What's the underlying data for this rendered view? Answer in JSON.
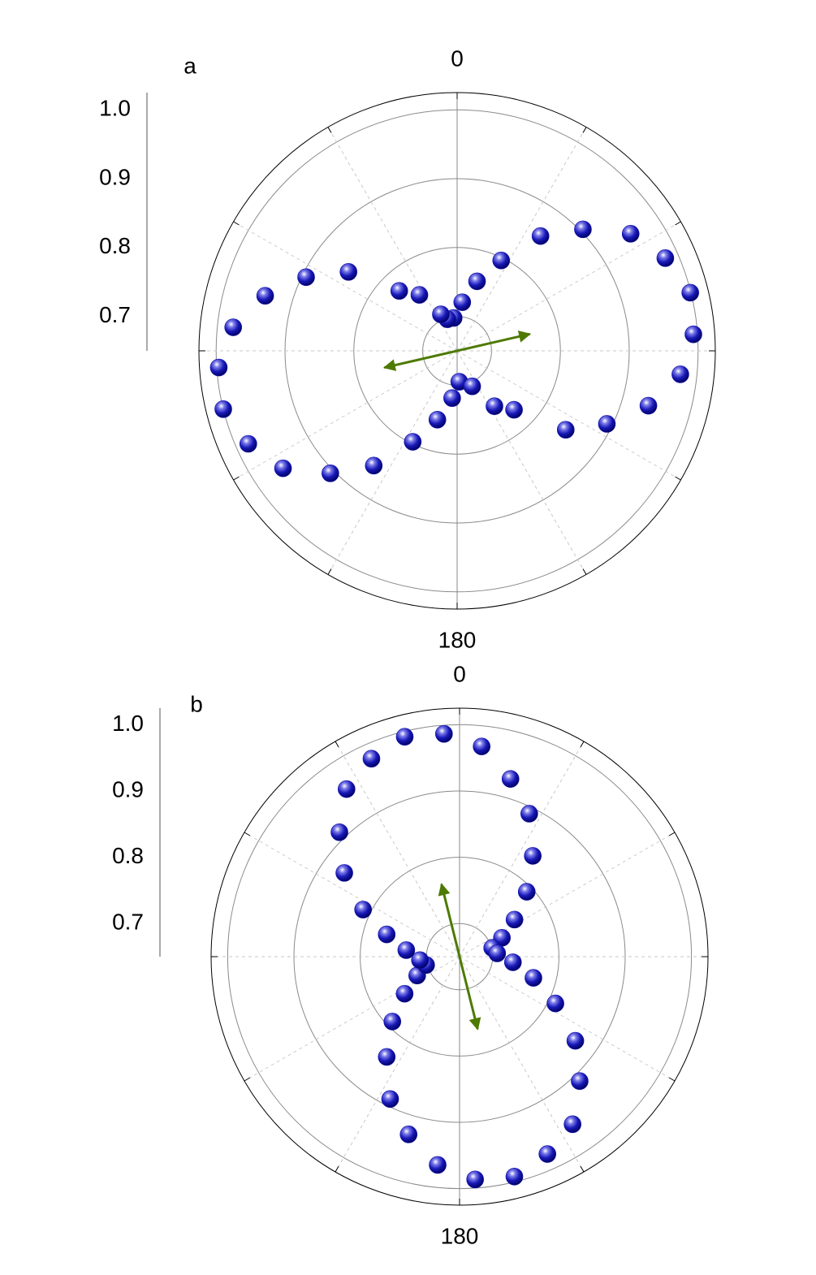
{
  "chart_data": [
    {
      "type": "polar",
      "title": "a",
      "color": "#1010a8",
      "rlim": [
        0.65,
        1.025
      ],
      "rticks": [
        0.7,
        0.8,
        0.9,
        {
          "value": 1,
          "label": "1.0"
        }
      ],
      "thetaticks": [
        0,
        180
      ],
      "theta_grid": [
        30,
        60,
        90,
        120,
        150,
        210,
        240,
        270,
        300,
        330
      ],
      "theta": [
        86,
        76,
        66,
        56,
        46,
        36,
        26,
        16,
        6,
        354,
        343,
        336,
        326,
        316,
        306,
        296,
        286,
        276,
        266,
        256,
        246,
        236,
        226,
        216,
        206,
        196,
        186,
        176,
        157,
        146,
        136,
        126,
        116,
        106,
        96
      ],
      "values": [
        0.994,
        0.999,
        0.981,
        0.954,
        0.904,
        0.856,
        0.796,
        0.755,
        0.721,
        0.698,
        0.698,
        0.708,
        0.748,
        0.771,
        0.845,
        0.894,
        0.94,
        0.977,
        0.997,
        1.0,
        0.982,
        0.955,
        0.906,
        0.856,
        0.797,
        0.754,
        0.719,
        0.695,
        0.706,
        0.747,
        0.769,
        0.845,
        0.892,
        0.939,
        0.976
      ],
      "arrow": {
        "angle": 77,
        "color": "#4d7a00"
      }
    },
    {
      "type": "polar",
      "title": "b",
      "color": "#1010a8",
      "rlim": [
        0.65,
        1.025
      ],
      "rticks": [
        0.7,
        0.8,
        0.9,
        {
          "value": 1,
          "label": "1.0"
        }
      ],
      "thetaticks": [
        0,
        180
      ],
      "theta_grid": [
        30,
        60,
        90,
        120,
        150,
        210,
        240,
        270,
        300,
        330
      ],
      "theta": [
        356,
        6,
        16,
        26,
        36,
        46,
        56,
        66,
        75,
        85,
        96,
        106,
        116,
        126,
        136,
        146,
        156,
        166,
        176,
        186,
        196,
        206,
        216,
        226,
        236,
        246,
        256,
        265,
        277,
        287,
        296,
        306,
        316,
        326,
        336,
        346
      ],
      "values": [
        0.987,
        0.969,
        0.929,
        0.89,
        0.838,
        0.791,
        0.75,
        0.72,
        0.701,
        0.707,
        0.731,
        0.766,
        0.811,
        0.866,
        0.911,
        0.955,
        0.976,
        0.992,
        0.987,
        0.966,
        0.929,
        0.889,
        0.837,
        0.791,
        0.75,
        0.72,
        0.702,
        0.71,
        0.731,
        0.765,
        0.812,
        0.865,
        0.911,
        0.955,
        0.977,
        0.992
      ],
      "arrow": {
        "angle": 346,
        "color": "#4d7a00"
      }
    }
  ]
}
